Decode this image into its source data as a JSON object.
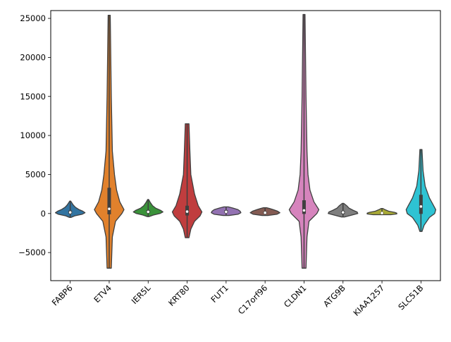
{
  "chart_data": {
    "type": "violin",
    "title": "",
    "xlabel": "",
    "ylabel": "",
    "ylim": [
      -8600,
      26000
    ],
    "yticks": [
      {
        "value": -5000,
        "label": "−5000"
      },
      {
        "value": 0,
        "label": "0"
      },
      {
        "value": 5000,
        "label": "5000"
      },
      {
        "value": 10000,
        "label": "10000"
      },
      {
        "value": 15000,
        "label": "15000"
      },
      {
        "value": 20000,
        "label": "20000"
      },
      {
        "value": 25000,
        "label": "25000"
      }
    ],
    "categories": [
      "FABP6",
      "ETV4",
      "IER5L",
      "KRT80",
      "FUT1",
      "C17orf96",
      "CLDN1",
      "ATG9B",
      "KIAA1257",
      "SLC51B"
    ],
    "violins": [
      {
        "name": "FABP6",
        "color": "#3274a1",
        "min": -500,
        "max": 1600,
        "q1": -20,
        "median": 150,
        "q3": 380,
        "profile": [
          [
            -500,
            0.05
          ],
          [
            -300,
            0.3
          ],
          [
            -100,
            0.8
          ],
          [
            100,
            1.0
          ],
          [
            300,
            0.85
          ],
          [
            500,
            0.6
          ],
          [
            800,
            0.35
          ],
          [
            1100,
            0.2
          ],
          [
            1400,
            0.1
          ],
          [
            1600,
            0.03
          ]
        ]
      },
      {
        "name": "ETV4",
        "color": "#e1812c",
        "min": -7000,
        "max": 25400,
        "q1": -100,
        "median": 600,
        "q3": 3300,
        "profile": [
          [
            -7000,
            0.02
          ],
          [
            -3000,
            0.03
          ],
          [
            -1000,
            0.06
          ],
          [
            0,
            0.12
          ],
          [
            500,
            0.14
          ],
          [
            1500,
            0.1
          ],
          [
            3000,
            0.07
          ],
          [
            5000,
            0.05
          ],
          [
            8000,
            0.03
          ],
          [
            15000,
            0.02
          ],
          [
            25400,
            0.01
          ]
        ]
      },
      {
        "name": "IER5L",
        "color": "#3a923a",
        "min": -400,
        "max": 1800,
        "q1": 50,
        "median": 220,
        "q3": 450,
        "profile": [
          [
            -400,
            0.05
          ],
          [
            -200,
            0.35
          ],
          [
            0,
            0.8
          ],
          [
            200,
            1.0
          ],
          [
            400,
            0.85
          ],
          [
            700,
            0.5
          ],
          [
            1000,
            0.3
          ],
          [
            1400,
            0.15
          ],
          [
            1800,
            0.03
          ]
        ]
      },
      {
        "name": "KRT80",
        "color": "#c03d3e",
        "min": -3100,
        "max": 11500,
        "q1": -250,
        "median": 250,
        "q3": 1000,
        "profile": [
          [
            -3100,
            0.01
          ],
          [
            -2000,
            0.02
          ],
          [
            -1000,
            0.04
          ],
          [
            -300,
            0.07
          ],
          [
            200,
            0.08
          ],
          [
            1000,
            0.06
          ],
          [
            2500,
            0.04
          ],
          [
            5000,
            0.02
          ],
          [
            8000,
            0.015
          ],
          [
            11500,
            0.01
          ]
        ]
      },
      {
        "name": "FUT1",
        "color": "#9372b2",
        "min": -250,
        "max": 850,
        "q1": 60,
        "median": 220,
        "q3": 420,
        "profile": [
          [
            -250,
            0.2
          ],
          [
            -100,
            0.8
          ],
          [
            100,
            1.0
          ],
          [
            300,
            0.95
          ],
          [
            500,
            0.8
          ],
          [
            700,
            0.45
          ],
          [
            850,
            0.15
          ]
        ]
      },
      {
        "name": "C17orf96",
        "color": "#845b53",
        "min": -250,
        "max": 750,
        "q1": -20,
        "median": 100,
        "q3": 250,
        "profile": [
          [
            -250,
            0.2
          ],
          [
            -100,
            0.8
          ],
          [
            100,
            1.0
          ],
          [
            300,
            0.85
          ],
          [
            500,
            0.55
          ],
          [
            650,
            0.3
          ],
          [
            750,
            0.1
          ]
        ]
      },
      {
        "name": "CLDN1",
        "color": "#d684bd",
        "min": -7000,
        "max": 25500,
        "q1": -50,
        "median": 400,
        "q3": 1700,
        "profile": [
          [
            -7000,
            0.02
          ],
          [
            -3000,
            0.03
          ],
          [
            -1000,
            0.05
          ],
          [
            0,
            0.13
          ],
          [
            500,
            0.15
          ],
          [
            1500,
            0.1
          ],
          [
            3000,
            0.06
          ],
          [
            5000,
            0.04
          ],
          [
            8000,
            0.03
          ],
          [
            15000,
            0.02
          ],
          [
            25500,
            0.01
          ]
        ]
      },
      {
        "name": "ATG9B",
        "color": "#7f7f7f",
        "min": -450,
        "max": 1300,
        "q1": -50,
        "median": 150,
        "q3": 350,
        "profile": [
          [
            -450,
            0.1
          ],
          [
            -200,
            0.6
          ],
          [
            0,
            1.0
          ],
          [
            200,
            0.95
          ],
          [
            400,
            0.7
          ],
          [
            700,
            0.4
          ],
          [
            1000,
            0.25
          ],
          [
            1300,
            0.05
          ]
        ]
      },
      {
        "name": "KIAA1257",
        "color": "#a9aa35",
        "min": -150,
        "max": 650,
        "q1": -30,
        "median": 60,
        "q3": 150,
        "profile": [
          [
            -150,
            0.6
          ],
          [
            -50,
            1.0
          ],
          [
            50,
            1.0
          ],
          [
            150,
            0.85
          ],
          [
            300,
            0.45
          ],
          [
            500,
            0.2
          ],
          [
            650,
            0.05
          ]
        ]
      },
      {
        "name": "SLC51B",
        "color": "#2ec3d3",
        "min": -2300,
        "max": 8200,
        "q1": -50,
        "median": 900,
        "q3": 2400,
        "profile": [
          [
            -2300,
            0.01
          ],
          [
            -1500,
            0.03
          ],
          [
            -500,
            0.08
          ],
          [
            0,
            0.13
          ],
          [
            500,
            0.14
          ],
          [
            1000,
            0.12
          ],
          [
            2000,
            0.08
          ],
          [
            3500,
            0.04
          ],
          [
            5500,
            0.02
          ],
          [
            8200,
            0.01
          ]
        ]
      }
    ]
  }
}
